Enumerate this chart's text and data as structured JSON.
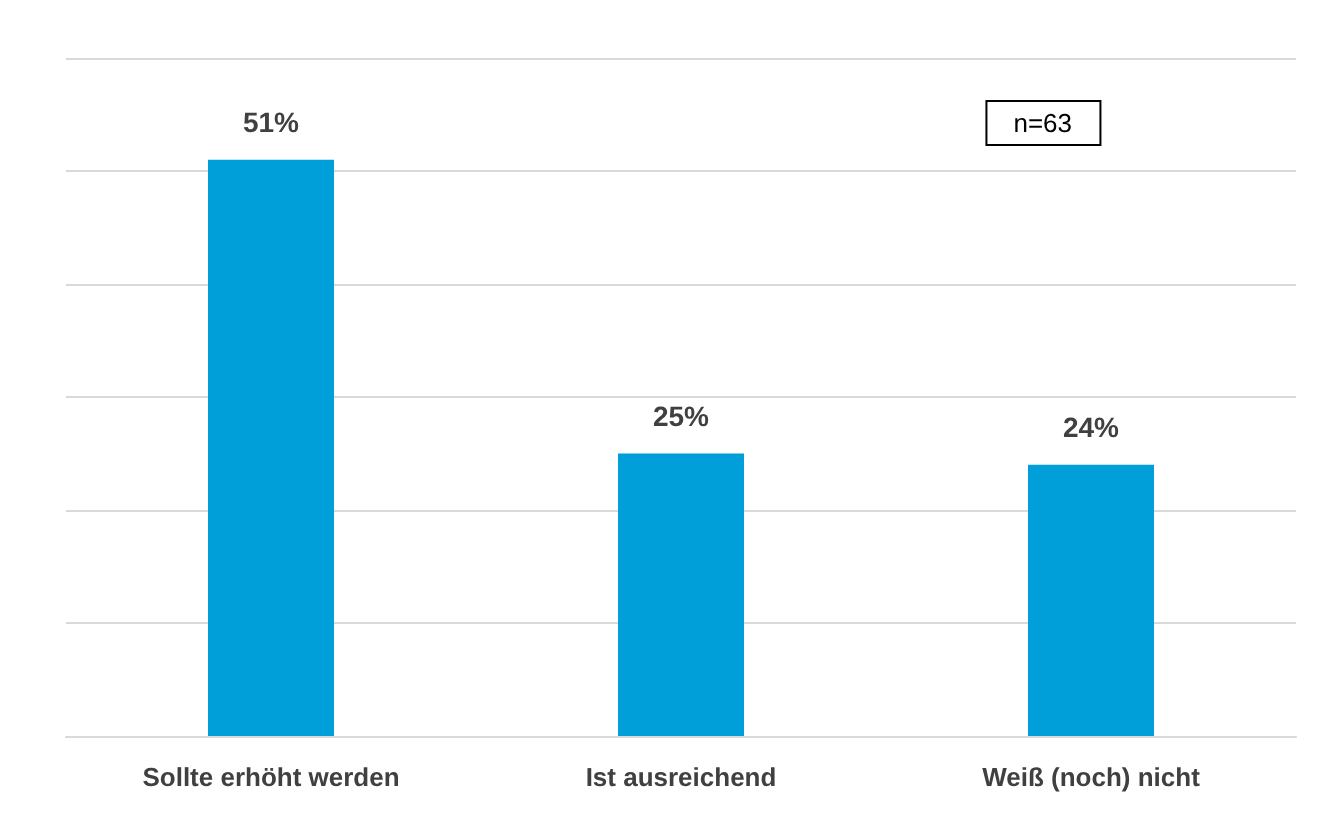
{
  "chart_data": {
    "type": "bar",
    "categories": [
      "Sollte erhöht werden",
      "Ist ausreichend",
      "Weiß (noch) nicht"
    ],
    "values": [
      51,
      25,
      24
    ],
    "color": "#009fda",
    "value_labels": [
      "51%",
      "25%",
      "24%"
    ],
    "ylim": [
      0,
      60
    ],
    "yticks": [
      {
        "value": 0,
        "label": null
      },
      {
        "value": 10,
        "label": null
      },
      {
        "value": 20,
        "label": null
      },
      {
        "value": 30,
        "label": null
      },
      {
        "value": 40,
        "label": null
      },
      {
        "value": 50,
        "label": null
      },
      {
        "value": 60,
        "label": null
      }
    ],
    "tick_labels": "x",
    "grid": "y",
    "annotations": [
      "n=63"
    ]
  }
}
